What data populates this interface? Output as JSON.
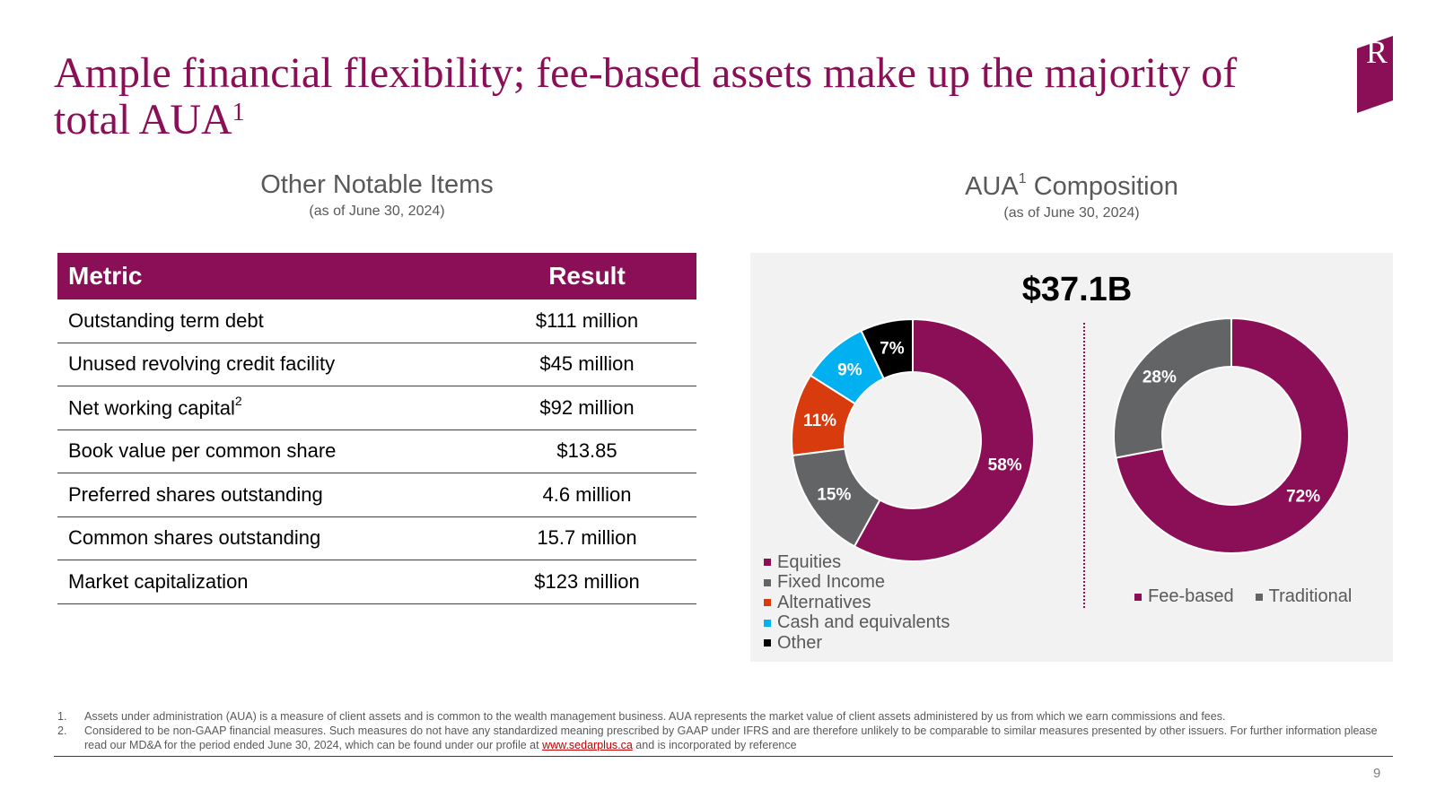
{
  "title": "Ample financial flexibility; fee-based assets make up the majority of total AUA",
  "title_sup": "1",
  "logo_letter": "R",
  "table_section": {
    "title": "Other Notable Items",
    "subtitle": "(as of June 30, 2024)",
    "headers": [
      "Metric",
      "Result"
    ],
    "rows": [
      {
        "metric": "Outstanding term debt",
        "sup": "",
        "result": "$111 million"
      },
      {
        "metric": "Unused revolving credit facility",
        "sup": "",
        "result": "$45 million"
      },
      {
        "metric": "Net working capital",
        "sup": "2",
        "result": "$92 million"
      },
      {
        "metric": "Book value per common share",
        "sup": "",
        "result": "$13.85"
      },
      {
        "metric": "Preferred shares outstanding",
        "sup": "",
        "result": "4.6 million"
      },
      {
        "metric": "Common shares outstanding",
        "sup": "",
        "result": "15.7 million"
      },
      {
        "metric": "Market capitalization",
        "sup": "",
        "result": "$123 million"
      }
    ]
  },
  "chart_section": {
    "title": "AUA",
    "title_sup": "1",
    "title_rest": " Composition",
    "subtitle": "(as of June 30, 2024)",
    "total": "$37.1B"
  },
  "chart_data": [
    {
      "type": "pie",
      "donut": true,
      "categories": [
        "Equities",
        "Fixed Income",
        "Alternatives",
        "Cash and equivalents",
        "Other"
      ],
      "values": [
        58,
        15,
        11,
        9,
        7
      ],
      "labels": [
        "58%",
        "15%",
        "11%",
        "9%",
        "7%"
      ],
      "colors": [
        "#8b0f56",
        "#636466",
        "#d83b0e",
        "#00b0f0",
        "#000000"
      ],
      "legend": "bottom-left"
    },
    {
      "type": "pie",
      "donut": true,
      "categories": [
        "Fee-based",
        "Traditional"
      ],
      "values": [
        72,
        28
      ],
      "labels": [
        "72%",
        "28%"
      ],
      "colors": [
        "#8b0f56",
        "#636466"
      ],
      "legend": "bottom"
    }
  ],
  "footnotes": [
    {
      "num": "1.",
      "text": "Assets under administration (AUA) is a measure of client assets and is common to the wealth management business. AUA represents the market value of client assets administered by us from which we earn commissions and fees."
    },
    {
      "num": "2.",
      "text_before": "Considered to be non-GAAP financial measures. Such measures do not have any standardized meaning prescribed by GAAP under IFRS and are therefore unlikely to be comparable to similar measures presented by other issuers. For further information please read our MD&A for the period ended June 30, 2024, which can be found under our profile at ",
      "link": "www.sedarplus.ca",
      "text_after": " and is incorporated by reference"
    }
  ],
  "page_number": "9"
}
